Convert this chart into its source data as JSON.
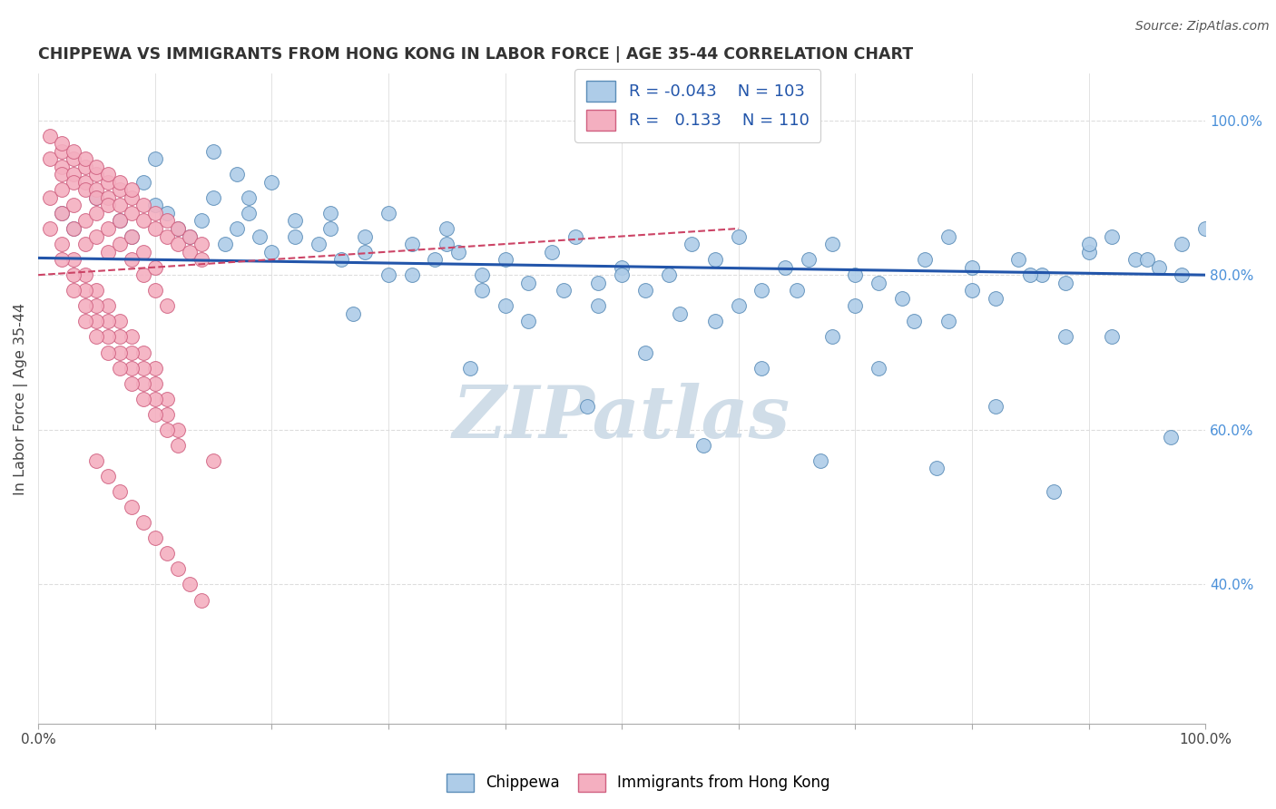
{
  "title": "CHIPPEWA VS IMMIGRANTS FROM HONG KONG IN LABOR FORCE | AGE 35-44 CORRELATION CHART",
  "source_text": "Source: ZipAtlas.com",
  "ylabel": "In Labor Force | Age 35-44",
  "xlim": [
    0.0,
    1.0
  ],
  "ylim": [
    0.22,
    1.06
  ],
  "x_ticks": [
    0.0,
    0.1,
    0.2,
    0.3,
    0.4,
    0.5,
    0.6,
    0.7,
    0.8,
    0.9,
    1.0
  ],
  "x_tick_labels": [
    "0.0%",
    "",
    "",
    "",
    "",
    "",
    "",
    "",
    "",
    "",
    "100.0%"
  ],
  "y_ticks_right": [
    0.4,
    0.6,
    0.8,
    1.0
  ],
  "y_tick_labels_right": [
    "40.0%",
    "60.0%",
    "80.0%",
    "100.0%"
  ],
  "blue_color": "#aecce8",
  "blue_edge": "#5b8db8",
  "pink_color": "#f4afc0",
  "pink_edge": "#d06080",
  "trend_blue_color": "#2255aa",
  "trend_pink_color": "#cc4466",
  "watermark": "ZIPatlas",
  "watermark_color": "#d0dde8",
  "background_color": "#ffffff",
  "grid_color": "#dddddd",
  "blue_trend_x0": 0.0,
  "blue_trend_y0": 0.822,
  "blue_trend_x1": 1.0,
  "blue_trend_y1": 0.8,
  "pink_trend_x0": 0.0,
  "pink_trend_y0": 0.8,
  "pink_trend_x1": 0.6,
  "pink_trend_y1": 0.86,
  "chippewa_x": [
    0.02,
    0.03,
    0.05,
    0.07,
    0.08,
    0.09,
    0.1,
    0.11,
    0.12,
    0.13,
    0.14,
    0.15,
    0.16,
    0.17,
    0.18,
    0.19,
    0.2,
    0.22,
    0.24,
    0.25,
    0.26,
    0.28,
    0.3,
    0.32,
    0.34,
    0.35,
    0.36,
    0.38,
    0.4,
    0.42,
    0.44,
    0.46,
    0.48,
    0.5,
    0.52,
    0.54,
    0.56,
    0.58,
    0.6,
    0.62,
    0.64,
    0.66,
    0.68,
    0.7,
    0.72,
    0.74,
    0.76,
    0.78,
    0.8,
    0.82,
    0.84,
    0.86,
    0.88,
    0.9,
    0.92,
    0.94,
    0.96,
    0.98,
    1.0,
    0.15,
    0.2,
    0.3,
    0.4,
    0.5,
    0.6,
    0.7,
    0.8,
    0.9,
    0.17,
    0.25,
    0.35,
    0.45,
    0.55,
    0.65,
    0.75,
    0.85,
    0.95,
    0.1,
    0.18,
    0.28,
    0.38,
    0.48,
    0.58,
    0.68,
    0.78,
    0.88,
    0.98,
    0.22,
    0.32,
    0.42,
    0.52,
    0.62,
    0.72,
    0.82,
    0.92,
    0.27,
    0.37,
    0.47,
    0.57,
    0.67,
    0.77,
    0.87,
    0.97
  ],
  "chippewa_y": [
    0.88,
    0.86,
    0.9,
    0.87,
    0.85,
    0.92,
    0.89,
    0.88,
    0.86,
    0.85,
    0.87,
    0.9,
    0.84,
    0.86,
    0.88,
    0.85,
    0.83,
    0.87,
    0.84,
    0.86,
    0.82,
    0.85,
    0.8,
    0.84,
    0.82,
    0.86,
    0.83,
    0.8,
    0.82,
    0.79,
    0.83,
    0.85,
    0.79,
    0.81,
    0.78,
    0.8,
    0.84,
    0.82,
    0.85,
    0.78,
    0.81,
    0.82,
    0.84,
    0.8,
    0.79,
    0.77,
    0.82,
    0.85,
    0.81,
    0.77,
    0.82,
    0.8,
    0.79,
    0.83,
    0.85,
    0.82,
    0.81,
    0.84,
    0.86,
    0.96,
    0.92,
    0.88,
    0.76,
    0.8,
    0.76,
    0.76,
    0.78,
    0.84,
    0.93,
    0.88,
    0.84,
    0.78,
    0.75,
    0.78,
    0.74,
    0.8,
    0.82,
    0.95,
    0.9,
    0.83,
    0.78,
    0.76,
    0.74,
    0.72,
    0.74,
    0.72,
    0.8,
    0.85,
    0.8,
    0.74,
    0.7,
    0.68,
    0.68,
    0.63,
    0.72,
    0.75,
    0.68,
    0.63,
    0.58,
    0.56,
    0.55,
    0.52,
    0.59
  ],
  "hk_x": [
    0.01,
    0.01,
    0.02,
    0.02,
    0.02,
    0.02,
    0.03,
    0.03,
    0.03,
    0.03,
    0.04,
    0.04,
    0.04,
    0.04,
    0.05,
    0.05,
    0.05,
    0.05,
    0.06,
    0.06,
    0.06,
    0.06,
    0.07,
    0.07,
    0.07,
    0.08,
    0.08,
    0.08,
    0.09,
    0.09,
    0.1,
    0.1,
    0.11,
    0.11,
    0.12,
    0.12,
    0.13,
    0.13,
    0.14,
    0.14,
    0.01,
    0.02,
    0.02,
    0.03,
    0.03,
    0.04,
    0.04,
    0.05,
    0.05,
    0.06,
    0.06,
    0.07,
    0.07,
    0.08,
    0.08,
    0.09,
    0.09,
    0.1,
    0.1,
    0.11,
    0.01,
    0.02,
    0.03,
    0.04,
    0.05,
    0.06,
    0.07,
    0.08,
    0.09,
    0.1,
    0.02,
    0.03,
    0.04,
    0.05,
    0.06,
    0.07,
    0.08,
    0.09,
    0.1,
    0.11,
    0.03,
    0.04,
    0.05,
    0.06,
    0.07,
    0.08,
    0.09,
    0.1,
    0.11,
    0.12,
    0.04,
    0.05,
    0.06,
    0.07,
    0.08,
    0.09,
    0.1,
    0.11,
    0.12,
    0.15,
    0.05,
    0.06,
    0.07,
    0.08,
    0.09,
    0.1,
    0.11,
    0.12,
    0.13,
    0.14
  ],
  "hk_y": [
    0.98,
    0.95,
    0.96,
    0.94,
    0.97,
    0.93,
    0.95,
    0.93,
    0.96,
    0.92,
    0.94,
    0.92,
    0.95,
    0.91,
    0.93,
    0.91,
    0.94,
    0.9,
    0.92,
    0.9,
    0.93,
    0.89,
    0.91,
    0.89,
    0.92,
    0.9,
    0.88,
    0.91,
    0.89,
    0.87,
    0.88,
    0.86,
    0.87,
    0.85,
    0.86,
    0.84,
    0.85,
    0.83,
    0.84,
    0.82,
    0.9,
    0.88,
    0.91,
    0.89,
    0.86,
    0.87,
    0.84,
    0.85,
    0.88,
    0.83,
    0.86,
    0.84,
    0.87,
    0.82,
    0.85,
    0.8,
    0.83,
    0.78,
    0.81,
    0.76,
    0.86,
    0.84,
    0.82,
    0.8,
    0.78,
    0.76,
    0.74,
    0.72,
    0.7,
    0.68,
    0.82,
    0.8,
    0.78,
    0.76,
    0.74,
    0.72,
    0.7,
    0.68,
    0.66,
    0.64,
    0.78,
    0.76,
    0.74,
    0.72,
    0.7,
    0.68,
    0.66,
    0.64,
    0.62,
    0.6,
    0.74,
    0.72,
    0.7,
    0.68,
    0.66,
    0.64,
    0.62,
    0.6,
    0.58,
    0.56,
    0.56,
    0.54,
    0.52,
    0.5,
    0.48,
    0.46,
    0.44,
    0.42,
    0.4,
    0.38
  ]
}
